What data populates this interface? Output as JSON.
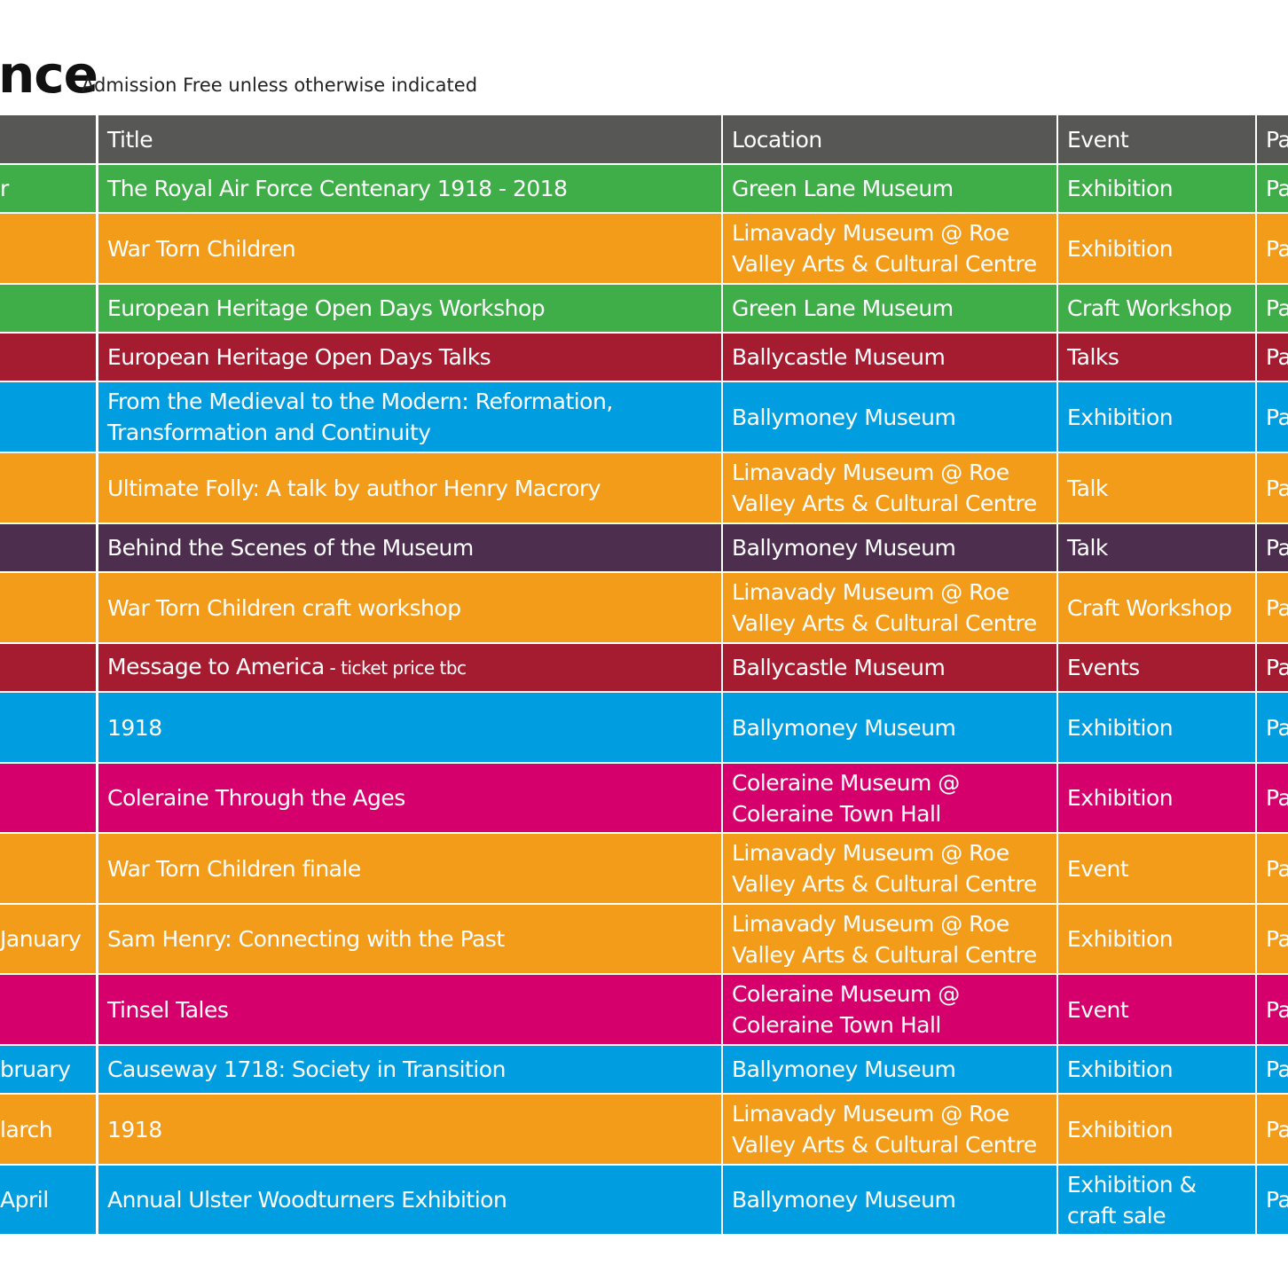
{
  "header": {
    "title_fragment": "nce",
    "subtitle": "Admission Free unless otherwise indicated"
  },
  "table": {
    "header_color": "#575756",
    "columns": [
      "Title",
      "Location",
      "Event",
      "Pa"
    ],
    "rows": [
      {
        "date": "r",
        "title": "The Royal Air Force Centenary 1918 - 2018",
        "location": "Green Lane Museum",
        "event": "Exhibition",
        "last": "Pa",
        "color": "#3fae49"
      },
      {
        "title": "War Torn Children",
        "location": "Limavady Museum @ Roe\n Valley Arts & Cultural Centre",
        "event": "Exhibition",
        "last": "Pa",
        "color": "#f39c1a"
      },
      {
        "title": "European Heritage Open Days Workshop",
        "location": "Green Lane Museum",
        "event": "Craft Workshop",
        "last": "Pa",
        "color": "#3fae49"
      },
      {
        "title": "European Heritage Open Days Talks",
        "location": "Ballycastle Museum",
        "event": "Talks",
        "last": "Pa",
        "color": "#a51c30"
      },
      {
        "title": "From the Medieval to the Modern: Reformation,\nTransformation and Continuity",
        "location": "Ballymoney Museum",
        "event": "Exhibition",
        "last": "Pa",
        "color": "#009ee0"
      },
      {
        "title": "Ultimate Folly: A talk by author Henry Macrory",
        "location": "Limavady Museum @ Roe\n Valley Arts & Cultural Centre",
        "event": "Talk",
        "last": "Pa",
        "color": "#f39c1a"
      },
      {
        "title": "Behind the Scenes of the Museum",
        "location": "Ballymoney Museum",
        "event": "Talk",
        "last": "Pa",
        "color": "#4e2e4f"
      },
      {
        "title": "War Torn Children craft workshop",
        "location": "Limavady Museum @ Roe\n Valley Arts & Cultural Centre",
        "event": "Craft Workshop",
        "last": "Pa",
        "color": "#f39c1a"
      },
      {
        "title": "Message to America",
        "title_note": " - ticket price tbc",
        "location": "Ballycastle Museum",
        "event": "Events",
        "last": "Pa",
        "color": "#a51c30"
      },
      {
        "title": "1918",
        "location": "Ballymoney Museum",
        "event": "Exhibition",
        "last": "Pa",
        "color": "#009ee0"
      },
      {
        "title": "Coleraine Through the Ages",
        "location": "Coleraine Museum @\nColeraine Town Hall",
        "event": "Exhibition",
        "last": "Pa",
        "color": "#d6006d"
      },
      {
        "title": "War Torn Children finale",
        "location": "Limavady Museum @ Roe\n Valley Arts & Cultural Centre",
        "event": "Event",
        "last": "Pa",
        "color": "#f39c1a"
      },
      {
        "date": "January",
        "title": "Sam Henry: Connecting with the Past",
        "location": "Limavady Museum @ Roe\n Valley Arts & Cultural Centre",
        "event": "Exhibition",
        "last": "Pa",
        "color": "#f39c1a"
      },
      {
        "title": "Tinsel Tales",
        "location": "Coleraine Museum @\nColeraine Town Hall",
        "event": "Event",
        "last": "Pa",
        "color": "#d6006d"
      },
      {
        "date": "bruary",
        "title": "Causeway 1718: Society in Transition",
        "location": "Ballymoney Museum",
        "event": "Exhibition",
        "last": "Pa",
        "color": "#009ee0"
      },
      {
        "date": "larch",
        "title": "1918",
        "location": "Limavady Museum @ Roe\n Valley Arts & Cultural Centre",
        "event": "Exhibition",
        "last": "Pa",
        "color": "#f39c1a"
      },
      {
        "date": "April",
        "title": "Annual Ulster Woodturners Exhibition",
        "location": "Ballymoney Museum",
        "event": "Exhibition &\ncraft sale",
        "last": "Pa",
        "color": "#009ee0"
      }
    ]
  }
}
